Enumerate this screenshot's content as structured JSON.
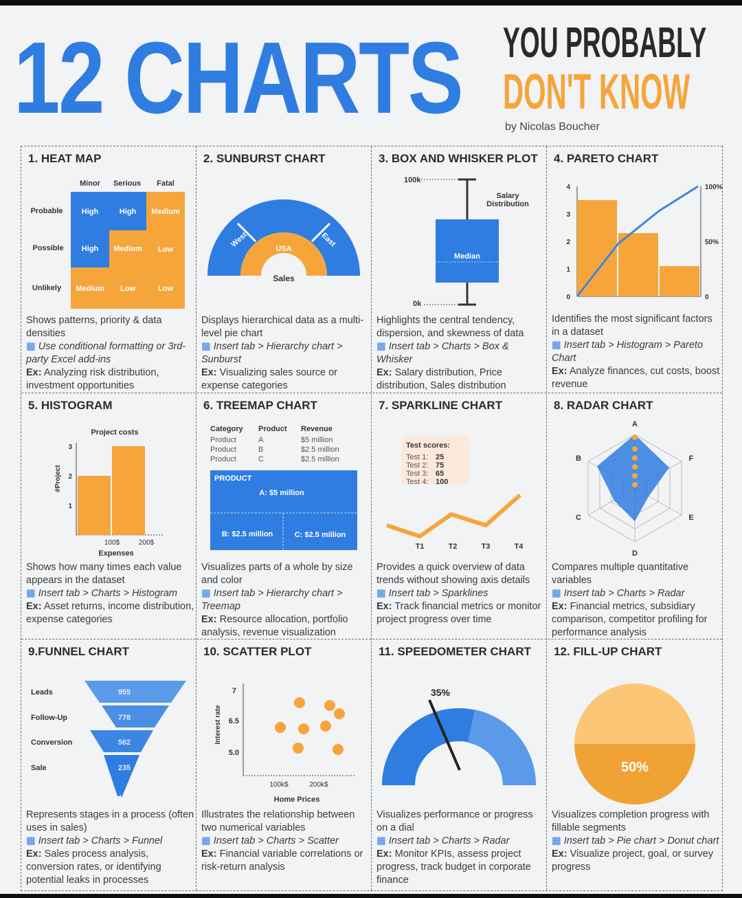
{
  "header": {
    "title": "12 CHARTS",
    "subtitle_line1": "YOU PROBABLY",
    "subtitle_line2": "DON'T KNOW",
    "author": "by Nicolas Boucher"
  },
  "colors": {
    "blue": "#2f7de1",
    "orange": "#f6a53b",
    "dark": "#2b2b2b"
  },
  "cards": [
    {
      "title": "1. HEAT MAP",
      "desc": "Shows patterns, priority & data densities",
      "tip": "Use conditional formatting or 3rd-party Excel add-ins",
      "ex_label": "Ex:",
      "ex": "Analyzing risk distribution, investment opportunities"
    },
    {
      "title": "2. SUNBURST CHART",
      "desc": "Displays hierarchical data as a multi-level pie chart",
      "tip": "Insert tab > Hierarchy chart > Sunburst",
      "ex_label": "Ex:",
      "ex": "Visualizing sales source or expense categories"
    },
    {
      "title": "3. BOX AND WHISKER PLOT",
      "desc": "Highlights the central tendency, dispersion, and skewness of data",
      "tip": "Insert tab > Charts > Box & Whisker",
      "ex_label": "Ex:",
      "ex": "Salary distribution, Price distribution, Sales distribution"
    },
    {
      "title": "4. PARETO CHART",
      "desc": "Identifies the most significant factors in a dataset",
      "tip": "Insert tab > Histogram > Pareto Chart",
      "ex_label": "Ex:",
      "ex": "Analyze finances, cut costs, boost revenue"
    },
    {
      "title": "5. HISTOGRAM",
      "desc": "Shows how many times each value appears in the dataset",
      "tip": "Insert tab > Charts > Histogram",
      "ex_label": "Ex:",
      "ex": "Asset returns, income distribution, expense categories"
    },
    {
      "title": "6. TREEMAP CHART",
      "desc": "Visualizes parts of a whole by size and color",
      "tip": "Insert tab > Hierarchy chart > Treemap",
      "ex_label": "Ex:",
      "ex": "Resource allocation, portfolio analysis, revenue visualization"
    },
    {
      "title": "7. SPARKLINE CHART",
      "desc": "Provides a quick overview of data trends without showing axis details",
      "tip": "Insert tab > Sparklines",
      "ex_label": "Ex:",
      "ex": "Track financial metrics or monitor project progress over time"
    },
    {
      "title": "8. RADAR CHART",
      "desc": "Compares multiple quantitative variables",
      "tip": "Insert tab > Charts > Radar",
      "ex_label": "Ex:",
      "ex": "Financial metrics, subsidiary comparison, competitor profiling for performance analysis"
    },
    {
      "title": "9.FUNNEL CHART",
      "desc": "Represents stages in a process (often uses in sales)",
      "tip": "Insert tab > Charts > Funnel",
      "ex_label": "Ex:",
      "ex": "Sales process analysis, conversion rates, or identifying potential leaks in processes"
    },
    {
      "title": "10. SCATTER PLOT",
      "desc": "Illustrates the relationship between two numerical variables",
      "tip": "Insert tab > Charts > Scatter",
      "ex_label": "Ex:",
      "ex": "Financial variable correlations or risk-return analysis"
    },
    {
      "title": "11. SPEEDOMETER CHART",
      "desc": "Visualizes performance or progress on a dial",
      "tip": "Insert tab > Charts > Radar",
      "ex_label": "Ex:",
      "ex": "Monitor KPIs, assess project progress, track budget in corporate finance"
    },
    {
      "title": "12. FILL-UP CHART",
      "desc": "Visualizes completion progress with fillable segments",
      "tip": "Insert tab > Pie chart > Donut chart",
      "ex_label": "Ex:",
      "ex": "Visualize project, goal, or survey progress"
    }
  ],
  "heatmap": {
    "cols": [
      "Minor",
      "Serious",
      "Fatal"
    ],
    "rows": [
      {
        "label": "Probable",
        "cells": [
          "High",
          "High",
          "Medium"
        ]
      },
      {
        "label": "Possible",
        "cells": [
          "High",
          "Medium",
          "Low"
        ]
      },
      {
        "label": "Unlikely",
        "cells": [
          "Medium",
          "Low",
          "Low"
        ]
      }
    ]
  },
  "sunburst": {
    "outer": [
      "West",
      "USA",
      "East"
    ],
    "inner": "Sales"
  },
  "boxplot": {
    "max_label": "100k",
    "min_label": "0k",
    "title": "Salary Distribution",
    "median_label": "Median"
  },
  "pareto": {
    "left_ticks": [
      "0",
      "1",
      "2",
      "3",
      "4"
    ],
    "right_ticks": [
      "0",
      "50%",
      "100%"
    ],
    "bars": [
      3.5,
      2.3,
      1.1
    ],
    "line": [
      0,
      48,
      78,
      100
    ]
  },
  "histogram": {
    "title": "Project costs",
    "ylabel": "#Project",
    "xlabel": "Expenses",
    "xticks": [
      "100$",
      "200$"
    ],
    "yticks": [
      "1",
      "2",
      "3"
    ],
    "values": [
      2,
      3
    ]
  },
  "treemap": {
    "table_headers": [
      "Category",
      "Product",
      "Revenue"
    ],
    "table_rows": [
      [
        "Product",
        "A",
        "$5 million"
      ],
      [
        "Product",
        "B",
        "$2.5 million"
      ],
      [
        "Product",
        "C",
        "$2.5 million"
      ]
    ],
    "header": "PRODUCT",
    "blocks": [
      "A: $5 million",
      "B: $2.5 million",
      "C: $2.5 million"
    ]
  },
  "sparkline": {
    "legend_title": "Test scores:",
    "tests": [
      {
        "label": "Test 1:",
        "value": "25"
      },
      {
        "label": "Test 2:",
        "value": "75"
      },
      {
        "label": "Test 3:",
        "value": "65"
      },
      {
        "label": "Test 4:",
        "value": "100"
      }
    ],
    "x_labels": [
      "T1",
      "T2",
      "T3",
      "T4"
    ]
  },
  "radar": {
    "axes": [
      "A",
      "F",
      "E",
      "D",
      "C",
      "B"
    ]
  },
  "funnel": {
    "stages": [
      {
        "label": "Leads",
        "value": "955"
      },
      {
        "label": "Follow-Up",
        "value": "778"
      },
      {
        "label": "Conversion",
        "value": "562"
      },
      {
        "label": "Sale",
        "value": "235"
      }
    ]
  },
  "scatter": {
    "ylabel": "Interest rate",
    "xlabel": "Home Prices",
    "yticks": [
      "7",
      "6.5",
      "5.0"
    ],
    "xticks": [
      "100k$",
      "200k$"
    ]
  },
  "speedometer": {
    "value_label": "35%",
    "value": 0.35
  },
  "fillup": {
    "value_label": "50%",
    "value": 0.5
  }
}
